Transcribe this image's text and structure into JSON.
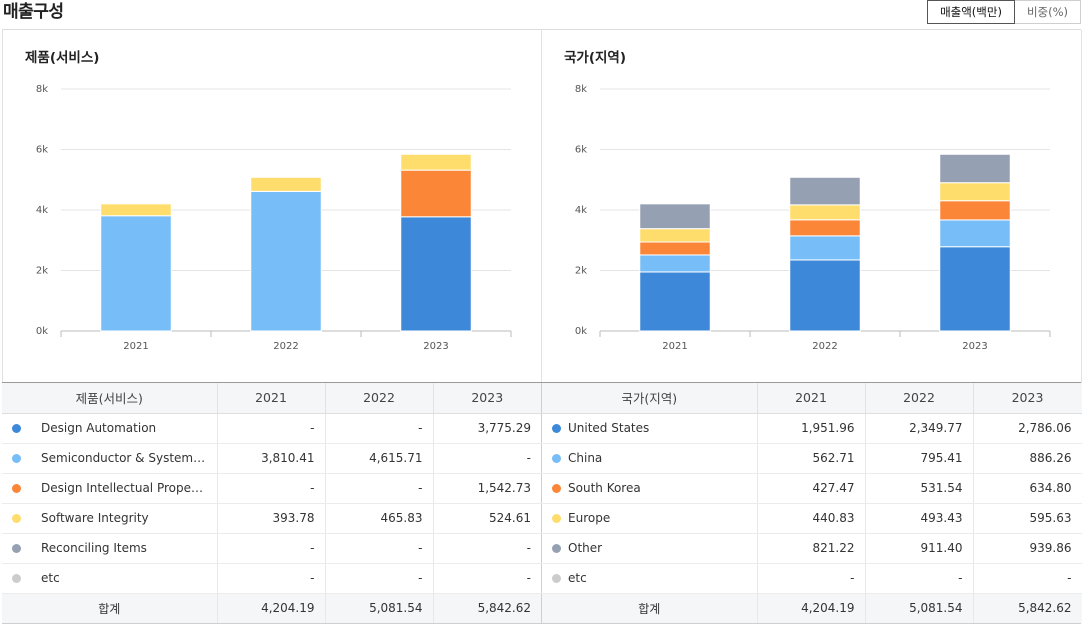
{
  "header": {
    "title": "매출구성",
    "toggle": [
      "매출액(백만)",
      "비중(%)"
    ],
    "toggle_active": 0
  },
  "chart_data": [
    {
      "type": "bar",
      "stacked": true,
      "title": "제품(서비스)",
      "categories": [
        "2021",
        "2022",
        "2023"
      ],
      "ylim": [
        0,
        8000
      ],
      "yticks": [
        0,
        2000,
        4000,
        6000,
        8000
      ],
      "ytick_labels": [
        "0k",
        "2k",
        "4k",
        "6k",
        "8k"
      ],
      "grid": true,
      "series": [
        {
          "name": "Design Automation",
          "color": "#3d88d8",
          "values": [
            0,
            0,
            3775.29
          ]
        },
        {
          "name": "Semiconductor & System D...",
          "color": "#77bdf7",
          "values": [
            3810.41,
            4615.71,
            0
          ]
        },
        {
          "name": "Design Intellectual Property",
          "color": "#fb8638",
          "values": [
            0,
            0,
            1542.73
          ]
        },
        {
          "name": "Software Integrity",
          "color": "#fedd6c",
          "values": [
            393.78,
            465.83,
            524.61
          ]
        },
        {
          "name": "Reconciling Items",
          "color": "#95a1b3",
          "values": [
            0,
            0,
            0
          ]
        },
        {
          "name": "etc",
          "color": "#cccccc",
          "values": [
            0,
            0,
            0
          ]
        }
      ]
    },
    {
      "type": "bar",
      "stacked": true,
      "title": "국가(지역)",
      "categories": [
        "2021",
        "2022",
        "2023"
      ],
      "ylim": [
        0,
        8000
      ],
      "yticks": [
        0,
        2000,
        4000,
        6000,
        8000
      ],
      "ytick_labels": [
        "0k",
        "2k",
        "4k",
        "6k",
        "8k"
      ],
      "grid": true,
      "series": [
        {
          "name": "United States",
          "color": "#3d88d8",
          "values": [
            1951.96,
            2349.77,
            2786.06
          ]
        },
        {
          "name": "China",
          "color": "#77bdf7",
          "values": [
            562.71,
            795.41,
            886.26
          ]
        },
        {
          "name": "South Korea",
          "color": "#fb8638",
          "values": [
            427.47,
            531.54,
            634.8
          ]
        },
        {
          "name": "Europe",
          "color": "#fedd6c",
          "values": [
            440.83,
            493.43,
            595.63
          ]
        },
        {
          "name": "Other",
          "color": "#95a1b3",
          "values": [
            821.22,
            911.4,
            939.86
          ]
        },
        {
          "name": "etc",
          "color": "#cccccc",
          "values": [
            0,
            0,
            0
          ]
        }
      ]
    }
  ],
  "tables": [
    {
      "header": [
        "제품(서비스)",
        "2021",
        "2022",
        "2023"
      ],
      "rows": [
        {
          "name": "Design Automation",
          "color": "#3d88d8",
          "cells": [
            "-",
            "-",
            "3,775.29"
          ]
        },
        {
          "name": "Semiconductor & System D...",
          "color": "#77bdf7",
          "cells": [
            "3,810.41",
            "4,615.71",
            "-"
          ]
        },
        {
          "name": "Design Intellectual Property",
          "color": "#fb8638",
          "cells": [
            "-",
            "-",
            "1,542.73"
          ]
        },
        {
          "name": "Software Integrity",
          "color": "#fedd6c",
          "cells": [
            "393.78",
            "465.83",
            "524.61"
          ]
        },
        {
          "name": "Reconciling Items",
          "color": "#95a1b3",
          "cells": [
            "-",
            "-",
            "-"
          ]
        },
        {
          "name": "etc",
          "color": "#cccccc",
          "cells": [
            "-",
            "-",
            "-"
          ]
        }
      ],
      "total": {
        "label": "합계",
        "cells": [
          "4,204.19",
          "5,081.54",
          "5,842.62"
        ]
      }
    },
    {
      "header": [
        "국가(지역)",
        "2021",
        "2022",
        "2023"
      ],
      "rows": [
        {
          "name": "United States",
          "color": "#3d88d8",
          "cells": [
            "1,951.96",
            "2,349.77",
            "2,786.06"
          ]
        },
        {
          "name": "China",
          "color": "#77bdf7",
          "cells": [
            "562.71",
            "795.41",
            "886.26"
          ]
        },
        {
          "name": "South Korea",
          "color": "#fb8638",
          "cells": [
            "427.47",
            "531.54",
            "634.80"
          ]
        },
        {
          "name": "Europe",
          "color": "#fedd6c",
          "cells": [
            "440.83",
            "493.43",
            "595.63"
          ]
        },
        {
          "name": "Other",
          "color": "#95a1b3",
          "cells": [
            "821.22",
            "911.40",
            "939.86"
          ]
        },
        {
          "name": "etc",
          "color": "#cccccc",
          "cells": [
            "-",
            "-",
            "-"
          ]
        }
      ],
      "total": {
        "label": "합계",
        "cells": [
          "4,204.19",
          "5,081.54",
          "5,842.62"
        ]
      }
    }
  ]
}
